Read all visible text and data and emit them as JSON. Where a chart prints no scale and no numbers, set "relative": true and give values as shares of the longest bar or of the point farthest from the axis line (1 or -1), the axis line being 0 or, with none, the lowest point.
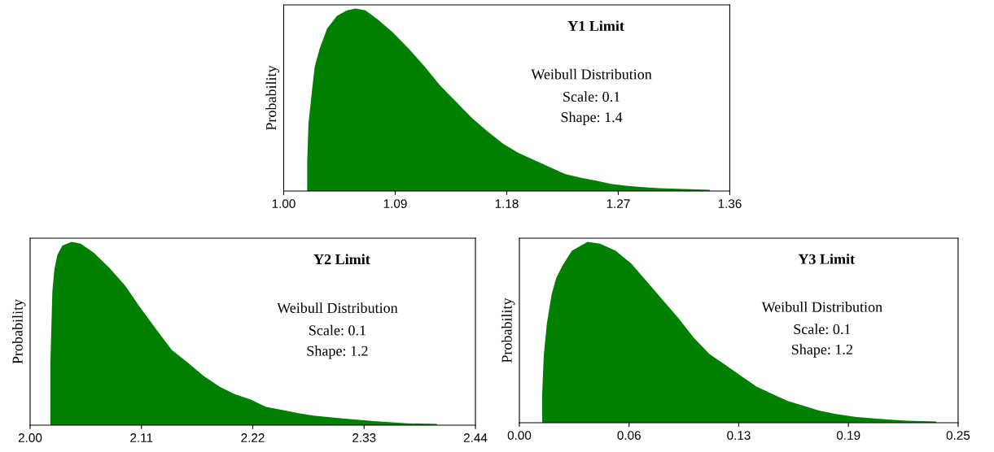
{
  "chart_data": [
    {
      "type": "area",
      "title": "Y1 Limit",
      "ylabel": "Probability",
      "relative": true,
      "legend": false,
      "grid": false,
      "annotations": [
        "Weibull Distribution",
        "Scale: 0.1",
        "Shape: 1.4"
      ],
      "xlim": [
        1.0,
        1.36
      ],
      "xticks": [
        {
          "value": 1.0,
          "label": "1.00"
        },
        1.09,
        1.18,
        1.27,
        1.36
      ],
      "series": [
        {
          "color": "#008000",
          "x": [
            1.019,
            1.02,
            1.023,
            1.025,
            1.029,
            1.035,
            1.043,
            1.051,
            1.058,
            1.066,
            1.076,
            1.088,
            1.101,
            1.114,
            1.126,
            1.139,
            1.152,
            1.164,
            1.177,
            1.189,
            1.202,
            1.215,
            1.227,
            1.24,
            1.253,
            1.265,
            1.278,
            1.29,
            1.303,
            1.318,
            1.344
          ],
          "values": [
            0.16,
            0.37,
            0.56,
            0.68,
            0.78,
            0.89,
            0.96,
            0.99,
            1.0,
            0.99,
            0.94,
            0.87,
            0.78,
            0.68,
            0.58,
            0.49,
            0.4,
            0.33,
            0.26,
            0.21,
            0.17,
            0.13,
            0.094,
            0.073,
            0.056,
            0.038,
            0.028,
            0.021,
            0.016,
            0.012,
            0.007
          ]
        }
      ]
    },
    {
      "type": "area",
      "title": "Y2 Limit",
      "ylabel": "Probability",
      "relative": true,
      "legend": false,
      "grid": false,
      "annotations": [
        "Weibull Distribution",
        "Scale: 0.1",
        "Shape: 1.2"
      ],
      "xlim": [
        2.0,
        2.44
      ],
      "xticks": [
        {
          "value": 2.0,
          "label": "2.00"
        },
        2.11,
        2.22,
        2.33,
        2.44
      ],
      "series": [
        {
          "color": "#008000",
          "x": [
            2.02,
            2.022,
            2.024,
            2.027,
            2.032,
            2.041,
            2.05,
            2.063,
            2.078,
            2.094,
            2.109,
            2.125,
            2.14,
            2.156,
            2.171,
            2.187,
            2.202,
            2.218,
            2.233,
            2.249,
            2.264,
            2.28,
            2.311,
            2.342,
            2.373,
            2.402
          ],
          "values": [
            0.34,
            0.73,
            0.85,
            0.93,
            0.98,
            1.0,
            0.99,
            0.94,
            0.86,
            0.76,
            0.64,
            0.52,
            0.41,
            0.34,
            0.27,
            0.21,
            0.17,
            0.14,
            0.1,
            0.083,
            0.066,
            0.052,
            0.035,
            0.021,
            0.01,
            0.007
          ]
        }
      ]
    },
    {
      "type": "area",
      "title": "Y3 Limit",
      "ylabel": "Probability",
      "relative": true,
      "legend": false,
      "grid": false,
      "annotations": [
        "Weibull Distribution",
        "Scale: 0.1",
        "Shape: 1.2"
      ],
      "xlim": [
        0.0,
        0.25
      ],
      "xticks": [
        {
          "value": 0.0,
          "label": "0.00"
        },
        {
          "value": 0.0625,
          "label": "0.06"
        },
        {
          "value": 0.125,
          "label": "0.13"
        },
        {
          "value": 0.1875,
          "label": "0.19"
        },
        0.25
      ],
      "series": [
        {
          "color": "#008000",
          "x": [
            0.013,
            0.0139,
            0.0157,
            0.0184,
            0.021,
            0.0246,
            0.0299,
            0.0388,
            0.046,
            0.0549,
            0.0638,
            0.0727,
            0.0816,
            0.0905,
            0.0994,
            0.1083,
            0.1173,
            0.1262,
            0.1351,
            0.144,
            0.1529,
            0.1618,
            0.1707,
            0.1796,
            0.1921,
            0.2099,
            0.2206,
            0.2375
          ],
          "values": [
            0.16,
            0.37,
            0.55,
            0.71,
            0.8,
            0.87,
            0.95,
            1.0,
            0.99,
            0.95,
            0.88,
            0.78,
            0.68,
            0.58,
            0.47,
            0.38,
            0.32,
            0.26,
            0.2,
            0.16,
            0.12,
            0.094,
            0.067,
            0.05,
            0.032,
            0.018,
            0.011,
            0.007
          ]
        }
      ]
    }
  ]
}
